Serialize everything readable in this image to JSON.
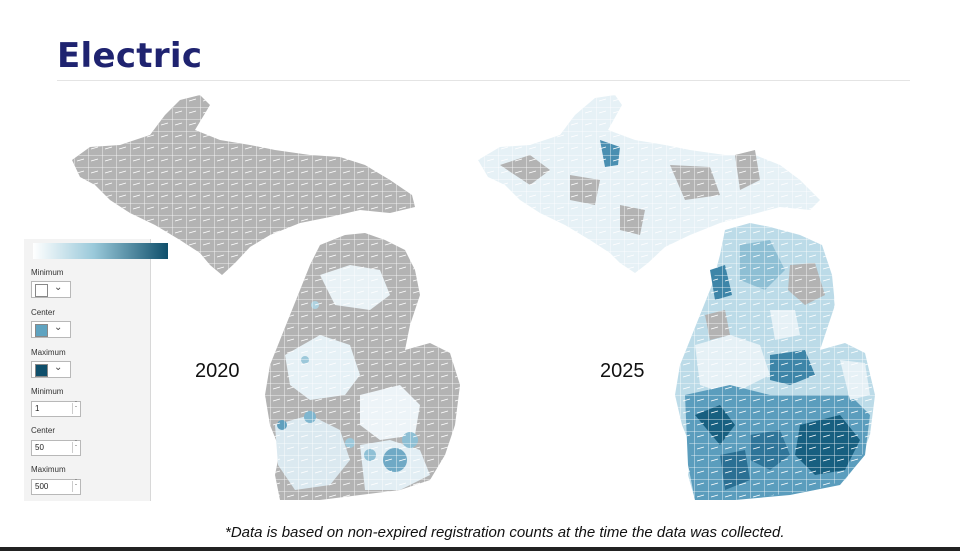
{
  "title": "Electric",
  "maps": [
    {
      "year": "2020"
    },
    {
      "year": "2025"
    }
  ],
  "legend": {
    "minimum_label": "Minimum",
    "center_label": "Center",
    "maximum_label": "Maximum",
    "min_value_label": "Minimum",
    "center_value_label": "Center",
    "max_value_label": "Maximum",
    "min_value": "1",
    "center_value": "50",
    "max_value": "500",
    "min_color": "#ffffff",
    "center_color": "#5fa3c0",
    "max_color": "#0f4f6b"
  },
  "colors": {
    "no_data": "#b3b3b3",
    "low": "#e6f1f6",
    "mid_low": "#bcdbe8",
    "mid": "#7fb6cf",
    "high": "#3d85a8",
    "highest": "#175f80",
    "title": "#1f2370"
  },
  "footnote": "*Data is based on non-expired registration counts at the time the data was collected."
}
